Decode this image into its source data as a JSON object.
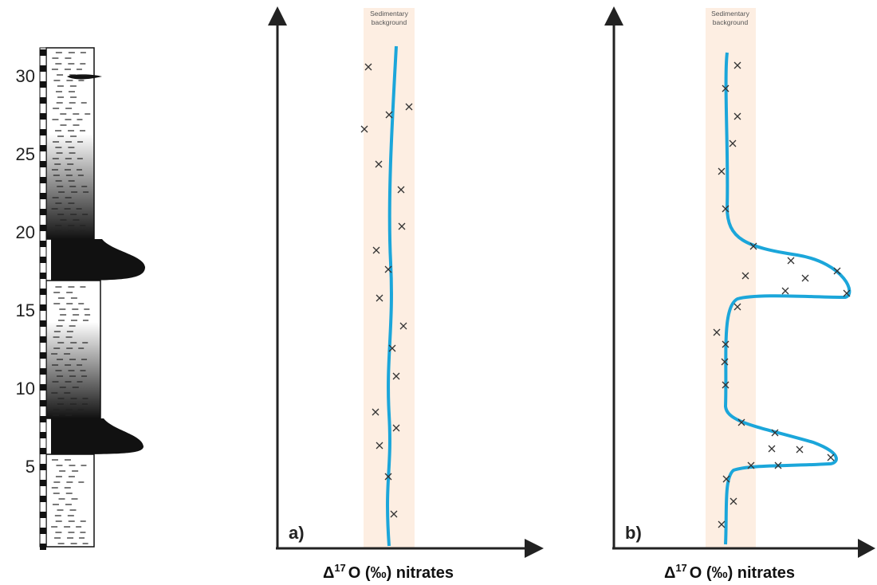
{
  "column": {
    "depth_ticks": [
      5,
      10,
      15,
      20,
      25,
      30
    ]
  },
  "panels": [
    {
      "label": "a)",
      "band_label": [
        "Sedimentary",
        "background"
      ],
      "x_label": {
        "delta": "Δ",
        "superscript": "17",
        "rest": "O (‰) nitrates"
      }
    },
    {
      "label": "b)",
      "band_label": [
        "Sedimentary",
        "background"
      ],
      "x_label": {
        "delta": "Δ",
        "superscript": "17",
        "rest": "O (‰) nitrates"
      }
    }
  ]
}
